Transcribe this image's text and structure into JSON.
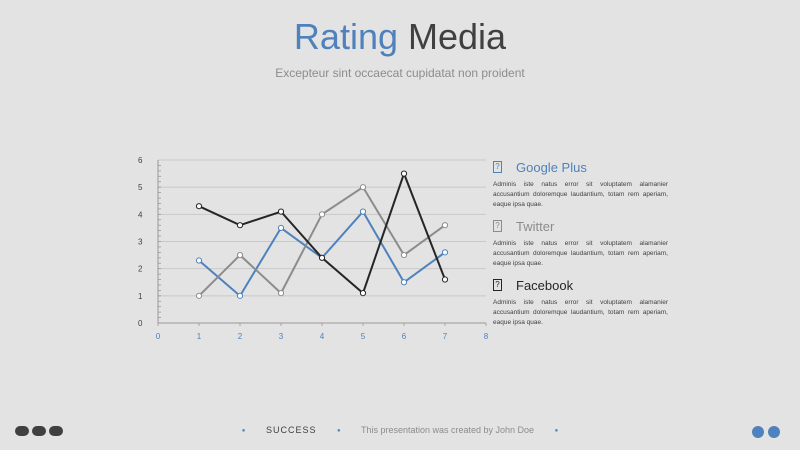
{
  "header": {
    "title_part1": "Rating",
    "title_part2": "Media",
    "subtitle": "Excepteur sint occaecat cupidatat non proident"
  },
  "legend": [
    {
      "name": "Google Plus",
      "color": "#4f81bd",
      "description": "Adminis iste natus error sit voluptatem alamanier accusantium doloremque laudantium, totam rem aperiam, eaque ipsa quae."
    },
    {
      "name": "Twitter",
      "color": "#8c8c8c",
      "description": "Adminis iste natus error sit voluptatem alamanier accusantium doloremque laudantium, totam rem aperiam, eaque ipsa quae."
    },
    {
      "name": "Facebook",
      "color": "#262626",
      "description": "Adminis iste natus error sit voluptatem alamanier accusantium doloremque laudantium, totam rem aperiam, eaque ipsa quae."
    }
  ],
  "chart_data": {
    "type": "line",
    "x": [
      1,
      2,
      3,
      4,
      5,
      6,
      7
    ],
    "xlim": [
      0,
      8
    ],
    "ylim": [
      0,
      6
    ],
    "xticks": [
      "0",
      "1",
      "2",
      "3",
      "4",
      "5",
      "6",
      "7",
      "8"
    ],
    "yticks": [
      "0",
      "1",
      "2",
      "3",
      "4",
      "5",
      "6"
    ],
    "grid": true,
    "series": [
      {
        "name": "Google Plus",
        "color": "#4f81bd",
        "values": [
          2.3,
          1.0,
          3.5,
          2.4,
          4.1,
          1.5,
          2.6
        ]
      },
      {
        "name": "Twitter",
        "color": "#8c8c8c",
        "values": [
          1.0,
          2.5,
          1.1,
          4.0,
          5.0,
          2.5,
          3.6
        ]
      },
      {
        "name": "Facebook",
        "color": "#262626",
        "values": [
          4.3,
          3.6,
          4.1,
          2.4,
          1.1,
          5.5,
          1.6
        ]
      }
    ]
  },
  "footer": {
    "brand": "SUCCESS",
    "credit": "This presentation was created by John Doe"
  }
}
